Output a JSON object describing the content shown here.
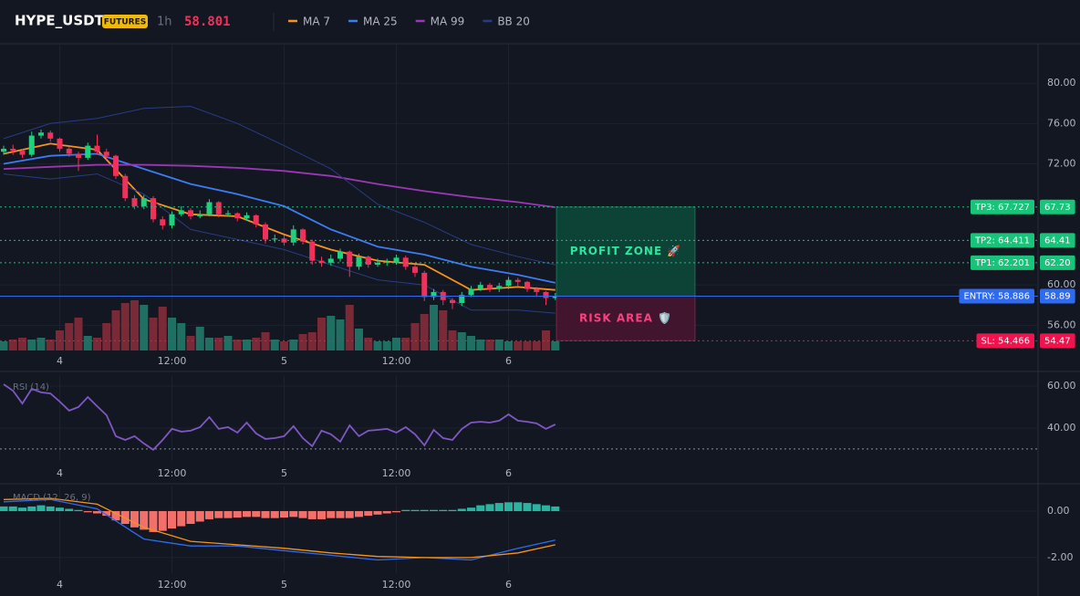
{
  "header": {
    "symbol": "HYPE_USDT",
    "badge": "FUTURES",
    "interval": "1h",
    "last_price": 58.801
  },
  "chart_data": [
    {
      "type": "candlestick",
      "categories": [
        null,
        null,
        null,
        null,
        null,
        null,
        "4",
        null,
        null,
        null,
        null,
        null,
        null,
        null,
        null,
        null,
        null,
        null,
        "12:00",
        null,
        null,
        null,
        null,
        null,
        null,
        null,
        null,
        null,
        null,
        null,
        "5",
        null,
        null,
        null,
        null,
        null,
        null,
        null,
        null,
        null,
        null,
        null,
        "12:00",
        null,
        null,
        null,
        null,
        null,
        null,
        null,
        null,
        null,
        null,
        null,
        "6",
        null,
        null,
        null,
        null,
        null
      ],
      "open": [
        73.2,
        73.5,
        73.3,
        72.9,
        74.8,
        75.1,
        74.5,
        73.5,
        73.0,
        72.6,
        73.8,
        73.2,
        72.8,
        70.8,
        68.6,
        67.8,
        68.6,
        66.5,
        65.9,
        67.0,
        67.4,
        66.8,
        67.0,
        68.2,
        67.0,
        67.1,
        66.6,
        66.9,
        66.0,
        64.5,
        64.6,
        64.2,
        65.5,
        64.3,
        62.4,
        62.2,
        62.6,
        63.3,
        61.8,
        62.8,
        62.0,
        62.2,
        62.3,
        62.7,
        61.8,
        61.2,
        58.8,
        59.3,
        58.5,
        58.2,
        59.0,
        59.6,
        60.0,
        59.6,
        59.9,
        60.5,
        60.3,
        59.6,
        59.3,
        58.7
      ],
      "high": [
        73.8,
        73.9,
        73.5,
        75.2,
        75.4,
        75.3,
        74.6,
        73.7,
        73.2,
        74.1,
        74.9,
        73.5,
        72.9,
        71.0,
        68.9,
        68.9,
        68.8,
        66.8,
        67.3,
        67.8,
        67.6,
        67.4,
        68.5,
        68.3,
        67.4,
        67.2,
        67.2,
        67.0,
        66.2,
        65.0,
        64.9,
        65.9,
        65.6,
        64.5,
        62.8,
        63.0,
        63.6,
        63.4,
        63.1,
        62.9,
        62.6,
        62.6,
        63.0,
        62.9,
        62.0,
        61.4,
        59.6,
        59.5,
        58.7,
        59.3,
        59.9,
        60.3,
        60.2,
        60.2,
        60.8,
        60.7,
        60.4,
        59.8,
        59.4,
        59.2
      ],
      "low": [
        72.9,
        72.9,
        72.6,
        72.7,
        74.5,
        74.2,
        73.2,
        72.7,
        71.3,
        72.4,
        72.9,
        72.4,
        70.5,
        68.3,
        67.5,
        67.5,
        66.2,
        65.5,
        65.6,
        66.8,
        66.5,
        66.6,
        66.8,
        66.7,
        66.8,
        66.3,
        66.4,
        65.7,
        64.1,
        64.2,
        63.9,
        63.9,
        64.0,
        62.0,
        61.8,
        61.9,
        62.3,
        60.8,
        61.5,
        61.7,
        61.8,
        61.9,
        62.0,
        61.5,
        60.8,
        58.4,
        58.5,
        58.0,
        57.6,
        57.9,
        58.8,
        59.4,
        59.3,
        59.3,
        59.6,
        59.9,
        59.3,
        58.8,
        58.0,
        58.5
      ],
      "close": [
        73.5,
        73.3,
        72.9,
        74.8,
        75.1,
        74.5,
        73.5,
        73.0,
        72.6,
        73.8,
        73.2,
        72.8,
        70.8,
        68.6,
        67.8,
        68.6,
        66.5,
        65.9,
        67.0,
        67.4,
        66.8,
        67.0,
        68.2,
        67.0,
        67.1,
        66.6,
        66.9,
        66.0,
        64.5,
        64.6,
        64.2,
        65.5,
        64.3,
        62.4,
        62.2,
        62.6,
        63.3,
        61.8,
        62.8,
        62.0,
        62.2,
        62.3,
        62.7,
        61.8,
        61.2,
        58.8,
        59.3,
        58.5,
        58.2,
        59.0,
        59.6,
        60.0,
        59.6,
        59.9,
        60.5,
        60.3,
        59.6,
        59.3,
        58.7,
        58.9
      ],
      "volume": [
        10,
        12,
        14,
        12,
        14,
        12,
        22,
        30,
        36,
        16,
        14,
        30,
        44,
        52,
        55,
        50,
        36,
        48,
        36,
        30,
        16,
        26,
        14,
        14,
        16,
        12,
        12,
        14,
        20,
        12,
        10,
        12,
        18,
        20,
        36,
        38,
        34,
        50,
        24,
        14,
        10,
        10,
        14,
        14,
        30,
        40,
        50,
        44,
        22,
        20,
        16,
        12,
        12,
        12,
        10,
        10,
        10,
        10,
        22,
        10
      ],
      "volume_lim": [
        0,
        60
      ],
      "colors": {
        "up": "#1fd17e",
        "down": "#f0325a"
      },
      "volume_colors": {
        "up": "#1f6f63",
        "down": "#7a2a36"
      },
      "series": [
        {
          "name": "MA 7",
          "color": "#f7931a",
          "x": [
            0,
            5,
            10,
            15,
            20,
            25,
            30,
            35,
            40,
            45,
            50,
            55,
            59
          ],
          "values": [
            73.0,
            74.0,
            73.4,
            68.5,
            67.0,
            66.8,
            65.0,
            63.5,
            62.4,
            62.0,
            59.5,
            59.8,
            59.5
          ]
        },
        {
          "name": "MA 25",
          "color": "#3b7cf0",
          "x": [
            0,
            5,
            10,
            15,
            20,
            25,
            30,
            35,
            40,
            45,
            50,
            55,
            59
          ],
          "values": [
            72.0,
            72.8,
            73.0,
            71.5,
            70.0,
            69.0,
            67.8,
            65.5,
            63.8,
            63.0,
            61.8,
            61.0,
            60.2
          ]
        },
        {
          "name": "MA 99",
          "color": "#9c36b5",
          "x": [
            0,
            5,
            10,
            15,
            20,
            25,
            30,
            35,
            40,
            45,
            50,
            55,
            59
          ],
          "values": [
            71.5,
            71.7,
            71.9,
            71.9,
            71.8,
            71.6,
            71.3,
            70.8,
            70.0,
            69.3,
            68.7,
            68.2,
            67.7
          ]
        },
        {
          "name": "BB 20",
          "color": "#283c84",
          "x": [
            0,
            5,
            10,
            15,
            20,
            25,
            30,
            35,
            40,
            45,
            50,
            55,
            59
          ],
          "values": [
            74.5,
            76.0,
            76.5,
            77.5,
            77.7,
            76.0,
            73.8,
            71.5,
            68.0,
            66.2,
            64.0,
            62.8,
            62.0
          ],
          "lower": [
            71.0,
            70.5,
            71.0,
            69.0,
            65.5,
            64.5,
            63.5,
            62.0,
            60.5,
            60.0,
            57.5,
            57.5,
            57.2
          ]
        }
      ],
      "ylim": [
        53.5,
        83.9
      ],
      "yticks": [
        {
          "value": 56,
          "label": "56.00"
        },
        {
          "value": 60,
          "label": "60.00"
        },
        {
          "value": 72,
          "label": "72.00"
        },
        {
          "value": 76,
          "label": "76.00"
        },
        {
          "value": 80,
          "label": "80.00"
        }
      ],
      "grid": true,
      "levels": [
        {
          "value": 67.727,
          "label": "TP3: 67.727",
          "axis_label": "67.73",
          "color": "#18c37a",
          "style": "dotted"
        },
        {
          "value": 64.411,
          "label": "TP2: 64.411",
          "axis_label": "64.41",
          "color": "#18c37a",
          "style": "dotted"
        },
        {
          "value": 62.201,
          "label": "TP1: 62.201",
          "axis_label": "62.20",
          "color": "#18c37a",
          "style": "dotted"
        },
        {
          "value": 58.886,
          "label": "ENTRY: 58.886",
          "axis_label": "58.89",
          "color": "#2f6bf0",
          "style": "solid"
        },
        {
          "value": 54.466,
          "label": "SL: 54.466",
          "axis_label": "54.47",
          "color": "#f0134d",
          "style": "dotted"
        }
      ],
      "zones": [
        {
          "label": "PROFIT ZONE 🚀",
          "range": [
            58.886,
            67.727
          ],
          "color": "#0d4a3a",
          "text_color": "#2ee59d"
        },
        {
          "label": "RISK AREA 🛡️",
          "range": [
            54.466,
            58.886
          ],
          "color": "#4a1530",
          "text_color": "#ff3d7f"
        }
      ]
    },
    {
      "type": "line",
      "title": "RSI (14)",
      "categories": [
        null,
        null,
        null,
        null,
        null,
        null,
        "4",
        null,
        null,
        null,
        null,
        null,
        null,
        null,
        null,
        null,
        null,
        null,
        "12:00",
        null,
        null,
        null,
        null,
        null,
        null,
        null,
        null,
        null,
        null,
        null,
        "5",
        null,
        null,
        null,
        null,
        null,
        null,
        null,
        null,
        null,
        null,
        null,
        "12:00",
        null,
        null,
        null,
        null,
        null,
        null,
        null,
        null,
        null,
        null,
        null,
        "6",
        null,
        null,
        null,
        null,
        null
      ],
      "series": [
        {
          "color": "#7e57c2",
          "values": [
            60.9,
            57.8,
            51.7,
            58.7,
            57.0,
            56.5,
            52.6,
            48.3,
            50.0,
            54.8,
            50.4,
            46.1,
            36.1,
            34.3,
            36.1,
            32.6,
            29.6,
            34.3,
            39.6,
            38.3,
            38.7,
            40.4,
            45.2,
            39.6,
            40.4,
            37.8,
            42.6,
            37.4,
            34.8,
            35.2,
            36.1,
            40.9,
            35.2,
            31.3,
            38.7,
            37.0,
            33.5,
            41.3,
            36.1,
            38.7,
            39.1,
            39.6,
            37.8,
            40.4,
            37.0,
            31.7,
            39.1,
            35.2,
            34.3,
            39.6,
            42.6,
            43.0,
            42.6,
            43.5,
            46.5,
            43.5,
            43.0,
            42.2,
            39.6,
            41.7
          ]
        }
      ],
      "ylim": [
        24.3,
        64.8
      ],
      "yticks": [
        {
          "value": 40,
          "label": "40.00"
        },
        {
          "value": 60,
          "label": "60.00"
        }
      ],
      "levels": [
        30
      ],
      "grid": true
    },
    {
      "type": "macd",
      "title": "MACD (12, 26, 9)",
      "categories": [
        null,
        null,
        null,
        null,
        null,
        null,
        "4",
        null,
        null,
        null,
        null,
        null,
        null,
        null,
        null,
        null,
        null,
        null,
        "12:00",
        null,
        null,
        null,
        null,
        null,
        null,
        null,
        null,
        null,
        null,
        null,
        "5",
        null,
        null,
        null,
        null,
        null,
        null,
        null,
        null,
        null,
        null,
        null,
        "12:00",
        null,
        null,
        null,
        null,
        null,
        null,
        null,
        null,
        null,
        null,
        null,
        "6",
        null,
        null,
        null,
        null,
        null
      ],
      "histogram": [
        0.2,
        0.2,
        0.15,
        0.2,
        0.25,
        0.2,
        0.15,
        0.1,
        0.05,
        -0.05,
        -0.1,
        -0.2,
        -0.4,
        -0.55,
        -0.7,
        -0.8,
        -0.9,
        -0.85,
        -0.75,
        -0.65,
        -0.55,
        -0.45,
        -0.35,
        -0.3,
        -0.3,
        -0.28,
        -0.25,
        -0.25,
        -0.3,
        -0.3,
        -0.28,
        -0.25,
        -0.3,
        -0.35,
        -0.35,
        -0.3,
        -0.3,
        -0.3,
        -0.25,
        -0.2,
        -0.15,
        -0.1,
        -0.05,
        0.05,
        0.05,
        0.05,
        0.05,
        0.05,
        0.05,
        0.1,
        0.15,
        0.25,
        0.3,
        0.35,
        0.38,
        0.38,
        0.35,
        0.3,
        0.25,
        0.2
      ],
      "histogram_colors": {
        "up": "#2bb3a0",
        "down": "#f2706a"
      },
      "series": [
        {
          "color": "#2f6bf0",
          "x": [
            0,
            5,
            10,
            15,
            20,
            25,
            30,
            35,
            40,
            45,
            50,
            55,
            59
          ],
          "values": [
            0.4,
            0.5,
            0.1,
            -1.2,
            -1.5,
            -1.5,
            -1.7,
            -1.9,
            -2.1,
            -2.0,
            -2.1,
            -1.6,
            -1.25
          ]
        },
        {
          "color": "#f7931a",
          "x": [
            0,
            5,
            10,
            15,
            20,
            25,
            30,
            35,
            40,
            45,
            50,
            55,
            59
          ],
          "values": [
            0.5,
            0.55,
            0.3,
            -0.7,
            -1.3,
            -1.45,
            -1.6,
            -1.8,
            -1.95,
            -2.0,
            -2.0,
            -1.8,
            -1.45
          ]
        }
      ],
      "ylim": [
        -2.67,
        1.06
      ],
      "yticks": [
        {
          "value": -2,
          "label": "-2.00"
        },
        {
          "value": 0,
          "label": "0.00"
        }
      ],
      "grid": true
    }
  ]
}
